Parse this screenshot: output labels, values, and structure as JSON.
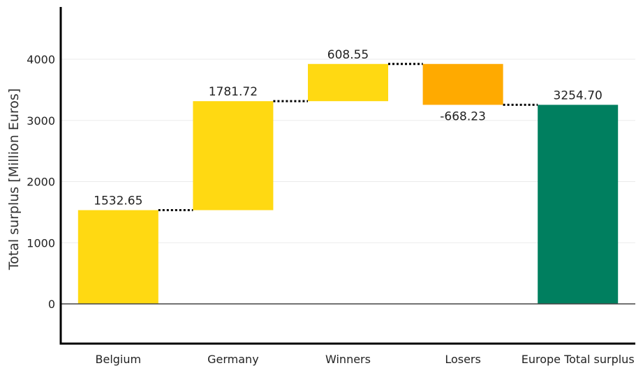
{
  "chart_data": {
    "type": "bar",
    "subtype": "waterfall",
    "categories": [
      "Belgium",
      "Germany",
      "Winners",
      "Losers",
      "Europe Total surplus"
    ],
    "values": [
      1532.65,
      1781.72,
      608.55,
      -668.23,
      3254.7
    ],
    "value_labels": [
      "1532.65",
      "1781.72",
      "608.55",
      "-668.23",
      "3254.70"
    ],
    "measure": [
      "relative",
      "relative",
      "relative",
      "relative",
      "total"
    ],
    "ylabel": "Total surplus [Million Euros]",
    "xlabel": "",
    "ylim": [
      -700,
      4800
    ],
    "yticks": [
      0,
      1000,
      2000,
      3000,
      4000
    ],
    "ytick_labels": [
      "0",
      "1000",
      "2000",
      "3000",
      "4000"
    ],
    "grid": true,
    "connectors": "dotted",
    "colors": {
      "increase": "#FFD912",
      "decrease": "#FFAA00",
      "total": "#007F5F",
      "grid": "#EBEBEB",
      "axis": "#000000",
      "zeroline": "#444444"
    }
  }
}
